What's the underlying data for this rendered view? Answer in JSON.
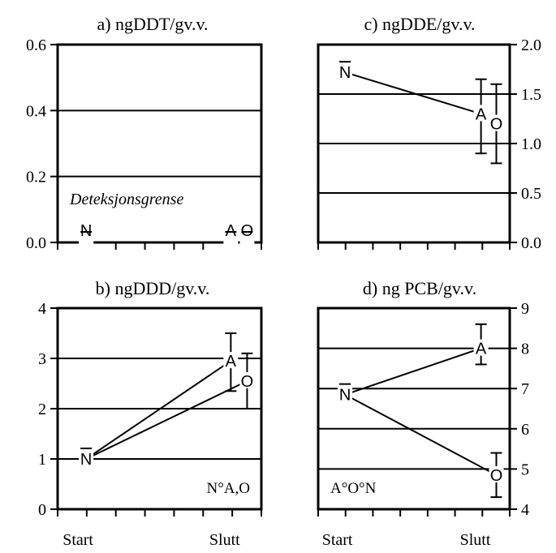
{
  "chart_data": [
    {
      "type": "line",
      "title": "a) ngDDT/gv.v.",
      "yaxis_side": "left",
      "ylim": [
        0,
        0.6
      ],
      "yticks": [
        "0.0",
        "0.2",
        "0.4",
        "0.6"
      ],
      "grid": [
        0.2,
        0.4
      ],
      "x_labels": [
        "Start",
        "Slutt"
      ],
      "annotation": "Deteksjonsgrense",
      "annotation_style": "italic",
      "series": [
        {
          "name": "N",
          "x": 0.14,
          "y": 0.0,
          "err": [
            0.0,
            0.0
          ]
        },
        {
          "name": "A",
          "x": 0.85,
          "y": 0.0,
          "err": [
            0.0,
            0.0
          ]
        },
        {
          "name": "O",
          "x": 0.93,
          "y": 0.0,
          "err": [
            0.0,
            0.0
          ]
        }
      ],
      "lines": []
    },
    {
      "type": "line",
      "title": "b) ngDDD/gv.v.",
      "yaxis_side": "left",
      "ylim": [
        0,
        4
      ],
      "yticks": [
        "0",
        "1",
        "2",
        "3",
        "4"
      ],
      "grid": [
        1,
        2,
        3
      ],
      "x_labels": [
        "Start",
        "Slutt"
      ],
      "annotation": "N°A,O",
      "annotation_style": "normal",
      "series": [
        {
          "name": "N",
          "x": 0.14,
          "y": 1.0,
          "err": [
            1.0,
            1.0
          ]
        },
        {
          "name": "A",
          "x": 0.85,
          "y": 2.95,
          "err": [
            2.35,
            3.5
          ]
        },
        {
          "name": "O",
          "x": 0.93,
          "y": 2.55,
          "err": [
            2.0,
            3.1
          ]
        }
      ],
      "lines": [
        [
          "N",
          "A"
        ],
        [
          "N",
          "O"
        ]
      ]
    },
    {
      "type": "line",
      "title": "c) ngDDE/gv.v.",
      "yaxis_side": "right",
      "ylim": [
        0,
        2
      ],
      "yticks": [
        "0.0",
        "0.5",
        "1.0",
        "1.5",
        "2.0"
      ],
      "grid": [
        0.5,
        1.0,
        1.5
      ],
      "x_labels": [
        "Start",
        "Slutt"
      ],
      "annotation": "",
      "annotation_style": "normal",
      "series": [
        {
          "name": "N",
          "x": 0.14,
          "y": 1.72,
          "err": [
            1.72,
            1.72
          ]
        },
        {
          "name": "A",
          "x": 0.85,
          "y": 1.3,
          "err": [
            0.9,
            1.65
          ]
        },
        {
          "name": "O",
          "x": 0.93,
          "y": 1.2,
          "err": [
            0.8,
            1.6
          ]
        }
      ],
      "lines": [
        [
          "N",
          "A"
        ]
      ]
    },
    {
      "type": "line",
      "title": "d) ng    PCB/gv.v.",
      "yaxis_side": "right",
      "ylim": [
        4,
        9
      ],
      "yticks": [
        "4",
        "5",
        "6",
        "7",
        "8",
        "9"
      ],
      "grid": [
        5,
        6,
        7,
        8
      ],
      "x_labels": [
        "Start",
        "Slutt"
      ],
      "annotation": "A°O°N",
      "annotation_style": "normal",
      "series": [
        {
          "name": "N",
          "x": 0.14,
          "y": 6.85,
          "err": [
            6.85,
            6.85
          ]
        },
        {
          "name": "A",
          "x": 0.85,
          "y": 8.0,
          "err": [
            7.6,
            8.6
          ]
        },
        {
          "name": "O",
          "x": 0.93,
          "y": 4.85,
          "err": [
            4.3,
            5.4
          ]
        }
      ],
      "lines": [
        [
          "N",
          "A"
        ],
        [
          "N",
          "O"
        ]
      ]
    }
  ]
}
